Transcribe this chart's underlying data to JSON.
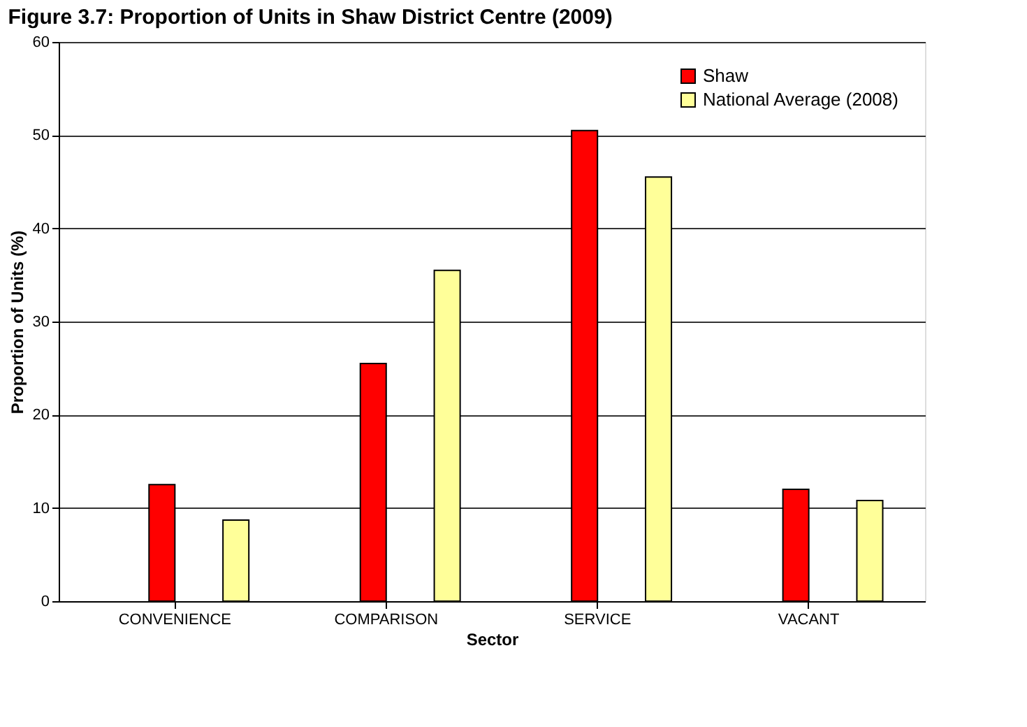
{
  "chart_data": {
    "type": "bar",
    "title": "Figure 3.7: Proportion of Units in Shaw District Centre (2009)",
    "xlabel": "Sector",
    "ylabel": "Proportion of Units (%)",
    "categories": [
      "CONVENIENCE",
      "COMPARISON",
      "SERVICE",
      "VACANT"
    ],
    "series": [
      {
        "name": "Shaw",
        "color": "#ff0000",
        "values": [
          12.5,
          25.5,
          50.5,
          12
        ]
      },
      {
        "name": "National Average (2008)",
        "color": "#ffff99",
        "values": [
          8.7,
          35.5,
          45.5,
          10.8
        ]
      }
    ],
    "ylim": [
      0,
      60
    ],
    "yticks": [
      0,
      10,
      20,
      30,
      40,
      50,
      60
    ],
    "grid": "y",
    "legend": "top right"
  }
}
